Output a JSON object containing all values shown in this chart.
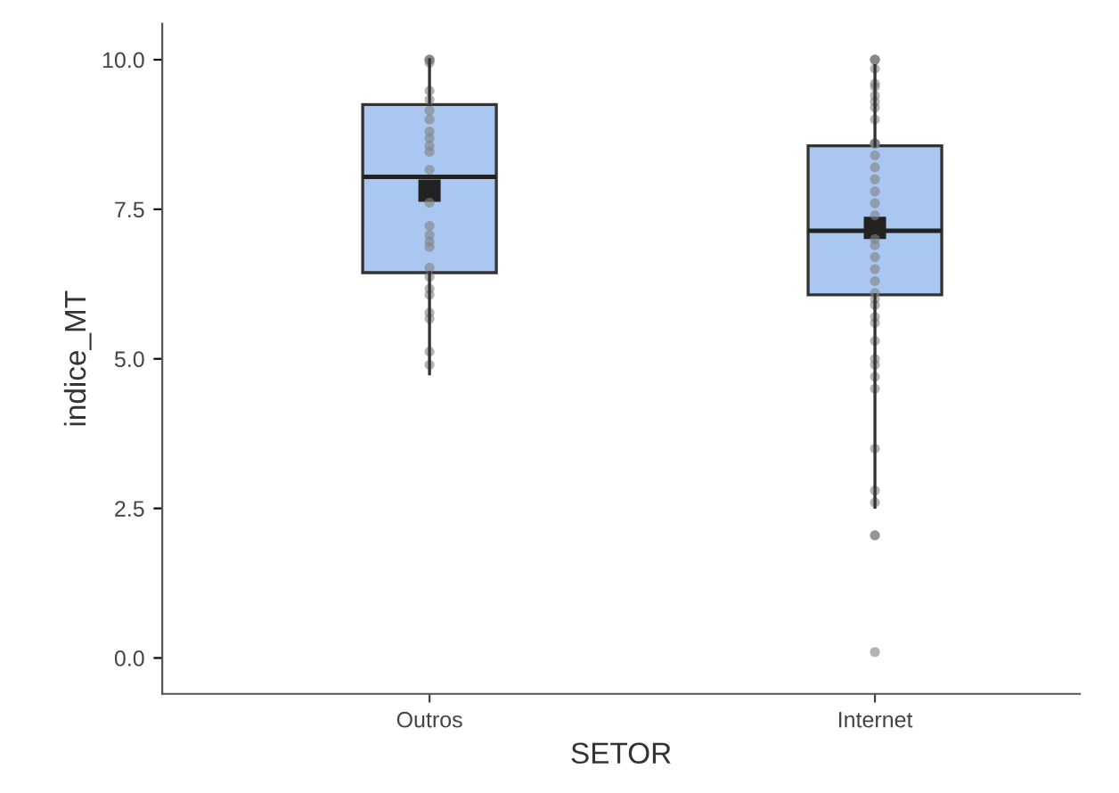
{
  "chart_data": {
    "type": "box",
    "xlabel": "SETOR",
    "ylabel": "indice_MT",
    "categories": [
      "Outros",
      "Internet"
    ],
    "ylim": [
      -0.6,
      10.6
    ],
    "yticks": [
      {
        "value": 0,
        "label": "0.0"
      },
      {
        "value": 2.5,
        "label": "2.5"
      },
      {
        "value": 5,
        "label": "5.0"
      },
      {
        "value": 7.5,
        "label": "7.5"
      },
      {
        "value": 10,
        "label": "10.0"
      }
    ],
    "grid": false,
    "series": [
      {
        "color": "#a9c7f0",
        "boxes": [
          {
            "low": 4.75,
            "q1": 6.44,
            "median": 8.04,
            "q3": 9.25,
            "high": 10.0,
            "mean": 7.81
          },
          {
            "low": 2.52,
            "q1": 6.07,
            "median": 7.14,
            "q3": 8.56,
            "high": 9.9,
            "mean": 7.19
          }
        ]
      },
      {
        "type": "scatter",
        "color": "#808080",
        "marker": "circle",
        "x": [
          "Outros",
          "Outros",
          "Outros",
          "Outros",
          "Outros",
          "Outros",
          "Outros",
          "Outros",
          "Outros",
          "Outros",
          "Outros",
          "Outros",
          "Outros",
          "Outros",
          "Outros",
          "Outros",
          "Outros",
          "Outros",
          "Outros",
          "Outros",
          "Outros",
          "Outros",
          "Outros",
          "Outros",
          "Outros",
          "Outros",
          "Internet",
          "Internet",
          "Internet",
          "Internet",
          "Internet",
          "Internet",
          "Internet",
          "Internet",
          "Internet",
          "Internet",
          "Internet",
          "Internet",
          "Internet",
          "Internet",
          "Internet",
          "Internet",
          "Internet",
          "Internet",
          "Internet",
          "Internet",
          "Internet",
          "Internet",
          "Internet",
          "Internet",
          "Internet",
          "Internet",
          "Internet",
          "Internet",
          "Internet",
          "Internet",
          "Internet",
          "Internet",
          "Internet",
          "Internet",
          "Internet",
          "Internet",
          "Internet",
          "Internet",
          "Internet",
          "Internet"
        ],
        "values": [
          9.95,
          10.0,
          10.0,
          10.0,
          9.48,
          9.33,
          9.15,
          9.0,
          8.8,
          8.69,
          8.56,
          8.46,
          8.16,
          7.61,
          7.22,
          7.07,
          6.96,
          6.87,
          6.52,
          6.37,
          6.17,
          6.07,
          5.77,
          5.67,
          5.12,
          4.9,
          10.0,
          10.0,
          10.0,
          9.85,
          9.6,
          9.55,
          9.4,
          9.3,
          9.2,
          9.0,
          8.6,
          8.6,
          8.6,
          8.4,
          8.2,
          8.0,
          7.8,
          7.6,
          7.4,
          7.0,
          6.9,
          6.7,
          6.5,
          6.3,
          6.1,
          6.0,
          5.9,
          5.7,
          5.6,
          5.3,
          5.0,
          4.9,
          4.7,
          4.5,
          3.5,
          2.8,
          2.6,
          2.05,
          2.05,
          0.1
        ]
      }
    ]
  }
}
